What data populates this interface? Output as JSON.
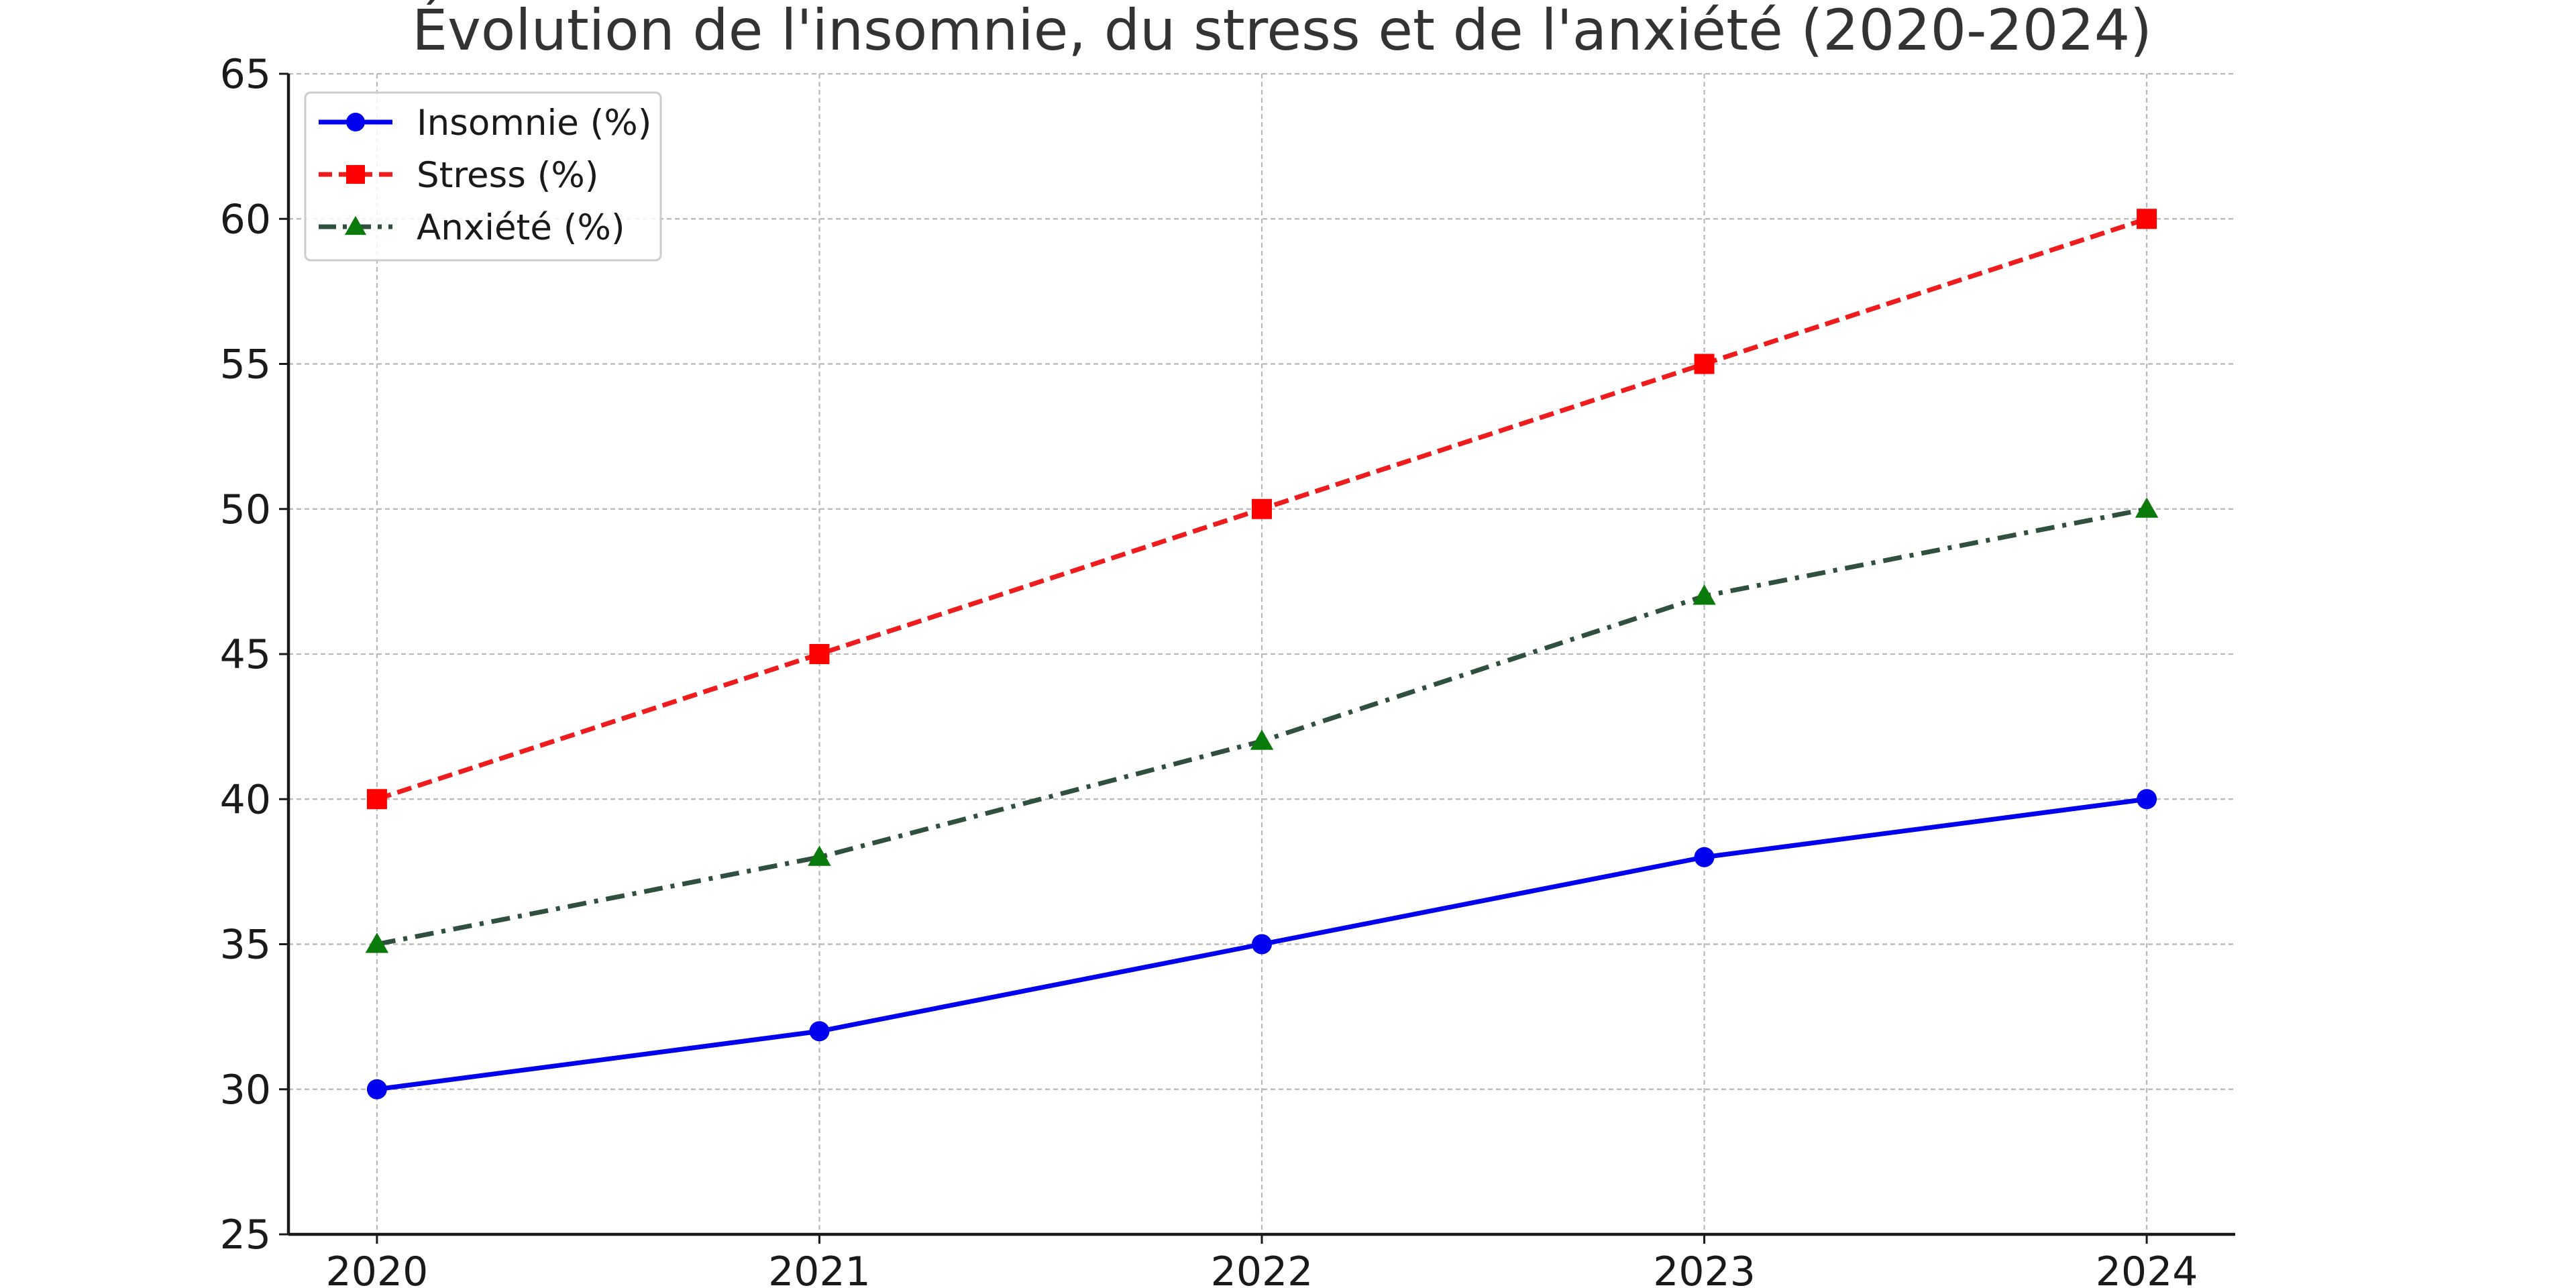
{
  "chart_data": {
    "type": "line",
    "title": "Évolution de l'insomnie, du stress et de l'anxiété (2020-2024)",
    "xlabel": "",
    "ylabel": "",
    "x": [
      "2020",
      "2021",
      "2022",
      "2023",
      "2024"
    ],
    "xlim": [
      2019.8,
      2024.2
    ],
    "ylim": [
      25,
      65
    ],
    "yticks": [
      "25",
      "30",
      "35",
      "40",
      "45",
      "50",
      "55",
      "60",
      "65"
    ],
    "grid": true,
    "legend_position": "top-left",
    "series": [
      {
        "name": "Insomnie (%)",
        "values": [
          30,
          32,
          35,
          38,
          40
        ],
        "color": "#0000ee",
        "line_color": "#0000ee",
        "line_style": "solid",
        "marker": "circle"
      },
      {
        "name": "Stress (%)",
        "values": [
          40,
          45,
          50,
          55,
          60
        ],
        "color": "#ff0000",
        "line_color": "#ee1c1c",
        "line_style": "dashed",
        "marker": "square"
      },
      {
        "name": "Anxiété (%)",
        "values": [
          35,
          38,
          42,
          47,
          50
        ],
        "color": "#0a7a0a",
        "line_color": "#2f4f3f",
        "line_style": "dashdot",
        "marker": "triangle"
      }
    ]
  }
}
